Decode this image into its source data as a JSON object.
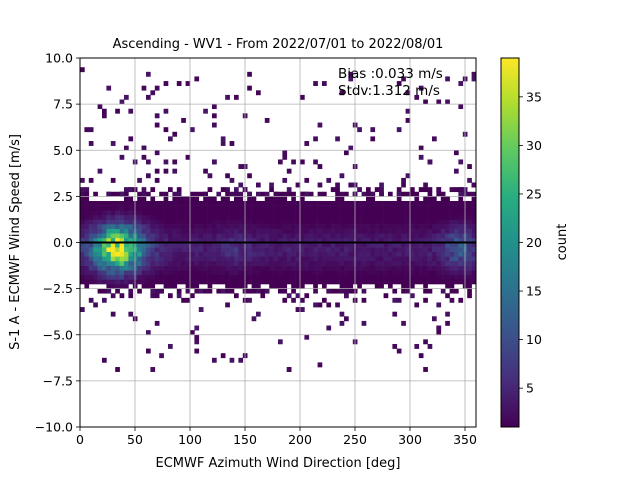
{
  "chart_data": {
    "type": "heatmap",
    "title": "Ascending - WV1 - From 2022/07/01 to 2022/08/01",
    "xlabel": "ECMWF Azimuth Wind Direction [deg]",
    "ylabel": "S-1 A - ECMWF Wind Speed [m/s]",
    "xlim": [
      0,
      360
    ],
    "ylim": [
      -10,
      10
    ],
    "xticks": [
      "0",
      "50",
      "100",
      "150",
      "200",
      "250",
      "300",
      "350"
    ],
    "xtick_values": [
      0,
      50,
      100,
      150,
      200,
      250,
      300,
      350
    ],
    "yticks": [
      "10.0",
      "7.5",
      "5.0",
      "2.5",
      "0.0",
      "−2.5",
      "−5.0",
      "−7.5",
      "−10.0"
    ],
    "ytick_values": [
      10,
      7.5,
      5,
      2.5,
      0,
      -2.5,
      -5,
      -7.5,
      -10
    ],
    "grid": true,
    "reference_line_y": 0,
    "colormap": "viridis",
    "colorbar": {
      "label": "count",
      "range": [
        1,
        39
      ],
      "ticks": [
        "5",
        "10",
        "15",
        "20",
        "25",
        "30",
        "35"
      ],
      "tick_values": [
        5,
        10,
        15,
        20,
        25,
        30,
        35
      ]
    },
    "annotations": [
      "Bias :0.033 m/s",
      "Stdv:1.312 m/s"
    ],
    "stats": {
      "bias_m_s": 0.033,
      "stdv_m_s": 1.312
    },
    "density_peak": {
      "x": 35,
      "y": -0.3,
      "count": 38
    }
  }
}
